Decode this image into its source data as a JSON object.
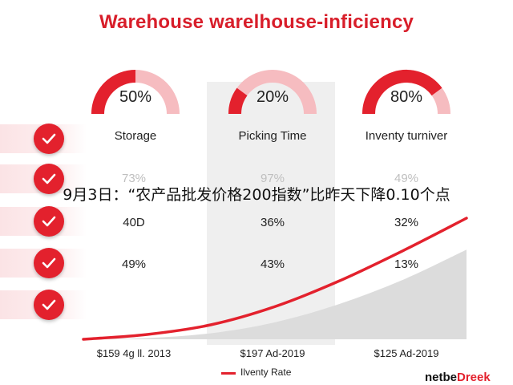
{
  "title": "Warehouse warelhouse-inficiency",
  "overlay_caption": "9月3日：“农产品批发价格200指数”比昨天下降0.10个点",
  "gauges": [
    {
      "value_label": "50%",
      "fraction": 0.5,
      "label": "Storage"
    },
    {
      "value_label": "20%",
      "fraction": 0.2,
      "label": "Picking Time"
    },
    {
      "value_label": "80%",
      "fraction": 0.8,
      "label": "Inventy turniver"
    }
  ],
  "table_rows": [
    {
      "cells": [
        "73%",
        "97%",
        "49%"
      ],
      "faded": true
    },
    {
      "cells": [
        "40D",
        "36%",
        "32%"
      ],
      "faded": false
    },
    {
      "cells": [
        "49%",
        "43%",
        "13%"
      ],
      "faded": false
    }
  ],
  "check_icon": "checkmark-icon",
  "colors": {
    "accent": "#e3212d",
    "gauge_track": "#f6bcc0",
    "area_fill": "#dcdcdc",
    "panel": "#efefef"
  },
  "chart_data": {
    "type": "area",
    "x_labels": [
      "$159 4g ll. 2013",
      "$197 Ad-2019",
      "$125 Ad-2019"
    ],
    "series": [
      {
        "name": "Ilventy Rate",
        "style": "line",
        "color": "#e3212d",
        "values": [
          0.0,
          0.04,
          0.12,
          0.27,
          0.48,
          0.73,
          1.0
        ]
      },
      {
        "style": "area",
        "color": "#dcdcdc",
        "values": [
          0.0,
          0.01,
          0.05,
          0.14,
          0.29,
          0.49,
          0.74
        ]
      }
    ],
    "legend": "bottom-center"
  },
  "legend_label": "Ilventy Rate",
  "brand": {
    "part1": "netbe",
    "part2": "Dreek"
  }
}
